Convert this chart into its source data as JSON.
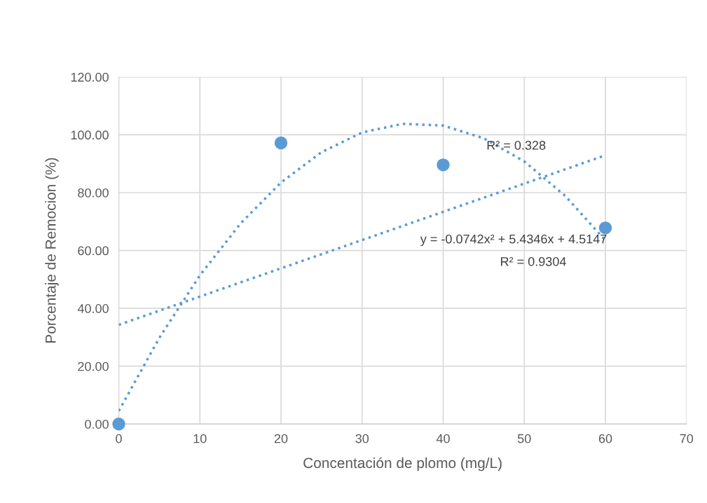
{
  "chart_data": {
    "type": "scatter",
    "xlabel": "Concentación de plomo (mg/L)",
    "ylabel": "Porcentaje de Remocion (%)",
    "series": [
      {
        "color": "#5b9bd5",
        "marker": "circle",
        "x": [
          0,
          20,
          40,
          60
        ],
        "values": [
          0,
          97.2,
          89.6,
          67.8
        ]
      },
      {
        "type": "line",
        "color": "#5b9bd5",
        "line_style": "dotted",
        "marker": "none",
        "x": [
          0,
          60
        ],
        "values": [
          34.3,
          92.9
        ]
      },
      {
        "type": "line",
        "color": "#5b9bd5",
        "line_style": "dotted",
        "marker": "none",
        "x": [
          0,
          5,
          10,
          15,
          20,
          25,
          30,
          35,
          40,
          45,
          50,
          55,
          60
        ],
        "values": [
          4.5,
          29.8,
          51.4,
          69.3,
          83.5,
          94.0,
          100.8,
          103.8,
          103.2,
          98.8,
          90.8,
          79.0,
          63.5
        ]
      }
    ],
    "annotations": [
      "R² = 0.328",
      "y = -0.0742x² + 5.4346x + 4.5147",
      "R² = 0.9304"
    ],
    "xlim": [
      0,
      70
    ],
    "xticks": [
      0,
      10,
      20,
      30,
      40,
      50,
      60,
      70
    ],
    "ylim": [
      0,
      120
    ],
    "yticks": [
      {
        "value": 0,
        "label": "0.00"
      },
      {
        "value": 20,
        "label": "20.00"
      },
      {
        "value": 40,
        "label": "40.00"
      },
      {
        "value": 60,
        "label": "60.00"
      },
      {
        "value": 80,
        "label": "80.00"
      },
      {
        "value": 100,
        "label": "100.00"
      },
      {
        "value": 120,
        "label": "120.00"
      }
    ],
    "grid": true,
    "legend": false
  }
}
